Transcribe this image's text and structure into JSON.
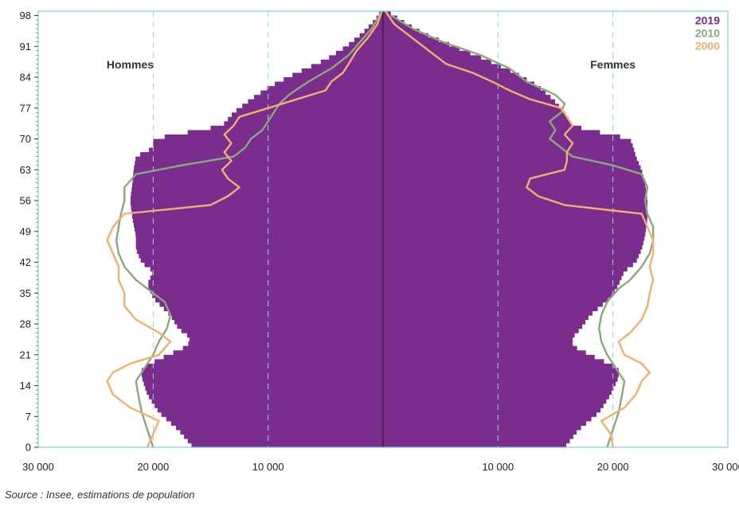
{
  "chart_data": {
    "type": "population-pyramid",
    "title": "",
    "xlabel": "",
    "ylabel": "",
    "xlim": [
      -30000,
      30000
    ],
    "ylim": [
      0,
      99
    ],
    "x_ticks": [
      -30000,
      -20000,
      -10000,
      10000,
      20000,
      30000
    ],
    "x_tick_labels": [
      "30 000",
      "20 000",
      "10 000",
      "10 000",
      "20 000",
      "30 000"
    ],
    "y_ticks": [
      0,
      7,
      14,
      21,
      28,
      35,
      42,
      49,
      56,
      63,
      70,
      77,
      84,
      91,
      98
    ],
    "y_tick_labels": [
      "0",
      "7",
      "14",
      "21",
      "28",
      "35",
      "42",
      "49",
      "56",
      "63",
      "70",
      "77",
      "84",
      "91",
      "98"
    ],
    "grid_x": [
      -20000,
      -10000,
      10000,
      20000
    ],
    "side_labels": {
      "left": "Hommes",
      "right": "Femmes"
    },
    "legend_position": "top-right",
    "series": [
      {
        "name": "2019",
        "color": "#7b2d8e",
        "style": "bars",
        "ages": [
          0,
          4,
          8,
          12,
          16,
          18,
          20,
          23,
          25,
          27,
          30,
          34,
          37,
          40,
          42,
          45,
          48,
          52,
          56,
          60,
          63,
          66,
          68,
          70,
          72,
          73,
          76,
          79,
          82,
          85,
          88,
          91,
          94,
          97,
          99
        ],
        "males": [
          16500,
          17800,
          19500,
          20500,
          21000,
          21000,
          19500,
          17000,
          16800,
          17800,
          18500,
          20000,
          20500,
          20000,
          21000,
          21500,
          21500,
          21800,
          22000,
          21800,
          21700,
          21500,
          20000,
          20000,
          16000,
          14000,
          13000,
          11500,
          9800,
          7500,
          5000,
          3200,
          1800,
          700,
          200
        ],
        "females": [
          15800,
          17000,
          18800,
          19800,
          20500,
          20500,
          18800,
          16500,
          16500,
          17200,
          18000,
          19800,
          20500,
          21000,
          22000,
          22500,
          22800,
          23000,
          23000,
          22800,
          22500,
          22000,
          21800,
          21500,
          18000,
          16500,
          15800,
          14800,
          13500,
          11500,
          9000,
          6200,
          3500,
          1500,
          400
        ]
      },
      {
        "name": "2010",
        "color": "#8aa87c",
        "style": "line",
        "ages": [
          0,
          4,
          8,
          12,
          15,
          17,
          19,
          21,
          24,
          27,
          30,
          33,
          36,
          38,
          41,
          44,
          47,
          50,
          53,
          56,
          59,
          62,
          64,
          66,
          68,
          70,
          72,
          74,
          76,
          78,
          80,
          83,
          86,
          89,
          92,
          95,
          98
        ],
        "males": [
          20000,
          20500,
          21000,
          21300,
          21500,
          21000,
          20500,
          20000,
          19500,
          18800,
          18500,
          19000,
          20500,
          21500,
          22500,
          23000,
          23200,
          23000,
          22800,
          22500,
          22500,
          21500,
          17500,
          13000,
          12000,
          11500,
          10500,
          10000,
          9500,
          9000,
          8200,
          6500,
          4500,
          3000,
          2000,
          1000,
          300
        ],
        "females": [
          19500,
          20000,
          20500,
          20800,
          21000,
          20500,
          20000,
          19500,
          19000,
          18800,
          19000,
          19500,
          20500,
          21500,
          22500,
          23200,
          23500,
          23500,
          23000,
          22800,
          23000,
          22500,
          20000,
          16500,
          15500,
          14500,
          15000,
          14500,
          15500,
          15800,
          15000,
          12500,
          11000,
          8500,
          5200,
          2600,
          700
        ]
      },
      {
        "name": "2000",
        "color": "#f2b06c",
        "style": "line",
        "ages": [
          0,
          3,
          6,
          9,
          12,
          15,
          17,
          19,
          21,
          24,
          26,
          29,
          32,
          35,
          38,
          41,
          44,
          47,
          50,
          53,
          55,
          57,
          59,
          61,
          63,
          65,
          67,
          69,
          71,
          73,
          75,
          77,
          79,
          81,
          83,
          85,
          87,
          90,
          93,
          96,
          99
        ],
        "males": [
          20500,
          20000,
          19500,
          22000,
          23500,
          24000,
          23500,
          22000,
          19500,
          18500,
          19500,
          21500,
          22500,
          22500,
          23000,
          23000,
          23500,
          24000,
          23500,
          22500,
          15000,
          13500,
          12500,
          13500,
          14000,
          13200,
          13800,
          13200,
          13800,
          13000,
          12500,
          10000,
          7500,
          5000,
          4500,
          3500,
          3000,
          2300,
          1300,
          500,
          100
        ],
        "females": [
          20000,
          19800,
          19000,
          21000,
          22000,
          22500,
          23200,
          22500,
          21000,
          20500,
          21500,
          22500,
          23000,
          23200,
          23500,
          23200,
          23500,
          23500,
          23000,
          22500,
          15800,
          13500,
          12500,
          12800,
          15800,
          16000,
          16000,
          16500,
          15800,
          16500,
          16000,
          15500,
          12800,
          11000,
          9500,
          7800,
          5500,
          4000,
          2500,
          1000,
          200
        ]
      }
    ]
  },
  "source_text": "Source : Insee, estimations de population"
}
